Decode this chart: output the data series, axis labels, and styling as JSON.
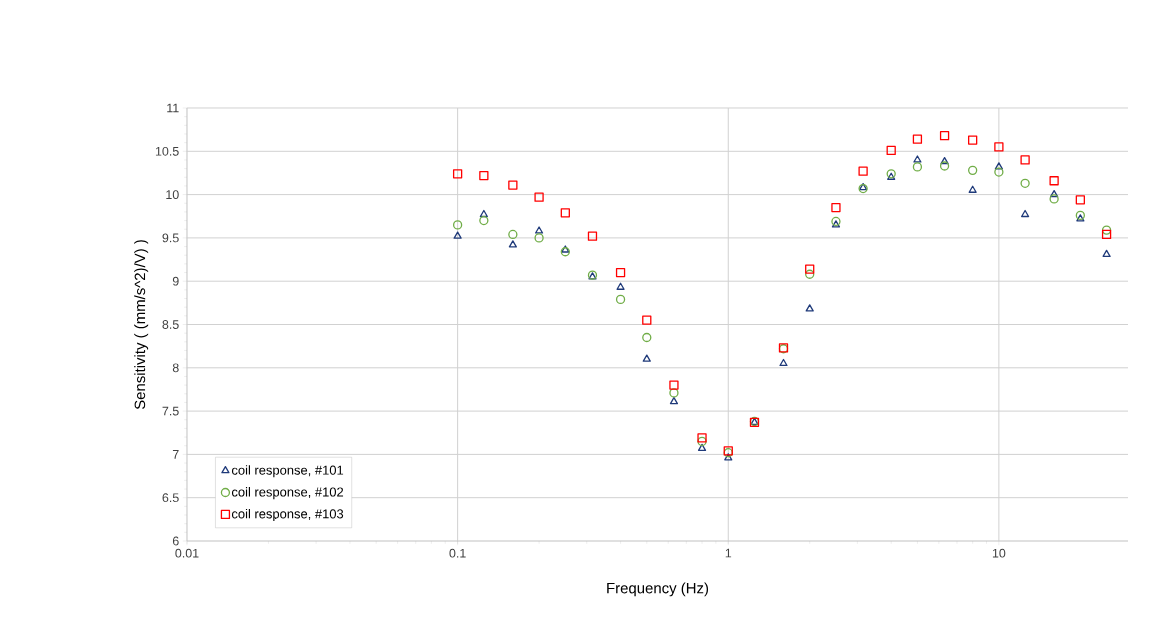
{
  "chart_data": {
    "type": "scatter",
    "xlabel": "Frequency (Hz)",
    "ylabel": "Sensitivity ( (mm/s^2)/V) )",
    "x": [
      0.1,
      0.125,
      0.16,
      0.2,
      0.25,
      0.315,
      0.4,
      0.5,
      0.63,
      0.8,
      1,
      1.25,
      1.6,
      2,
      2.5,
      3.15,
      4,
      5,
      6.3,
      8,
      10,
      12.5,
      16,
      20,
      25
    ],
    "series": [
      {
        "name": "coil response, #101",
        "color": "#1f3a7a",
        "marker": "triangle",
        "values": [
          9.52,
          9.77,
          9.42,
          9.58,
          9.36,
          9.05,
          8.93,
          8.1,
          7.61,
          7.07,
          6.96,
          7.37,
          8.05,
          8.68,
          9.65,
          10.08,
          10.2,
          10.4,
          10.38,
          10.05,
          10.32,
          9.77,
          10.0,
          9.72,
          9.31
        ]
      },
      {
        "name": "coil response, #102",
        "color": "#70ad47",
        "marker": "circle",
        "values": [
          9.65,
          9.7,
          9.54,
          9.5,
          9.34,
          9.07,
          8.79,
          8.35,
          7.71,
          7.15,
          7.02,
          7.38,
          8.22,
          9.08,
          9.69,
          10.07,
          10.24,
          10.32,
          10.33,
          10.28,
          10.26,
          10.13,
          9.95,
          9.76,
          9.59
        ]
      },
      {
        "name": "coil response, #103",
        "color": "#ff0000",
        "marker": "square",
        "values": [
          10.24,
          10.22,
          10.11,
          9.97,
          9.79,
          9.52,
          9.1,
          8.55,
          7.8,
          7.19,
          7.04,
          7.37,
          8.23,
          9.14,
          9.85,
          10.27,
          10.51,
          10.64,
          10.68,
          10.63,
          10.55,
          10.4,
          10.16,
          9.94,
          9.54
        ]
      }
    ],
    "xlim": [
      0.01,
      30
    ],
    "xticks": [
      0.01,
      0.1,
      1,
      10
    ],
    "ylim": [
      6,
      11
    ],
    "yticks": [
      6,
      6.5,
      7,
      7.5,
      8,
      8.5,
      9,
      9.5,
      10,
      10.5,
      11
    ],
    "log": "x",
    "grid": true,
    "legend": "bottom left",
    "line_style": "none"
  }
}
